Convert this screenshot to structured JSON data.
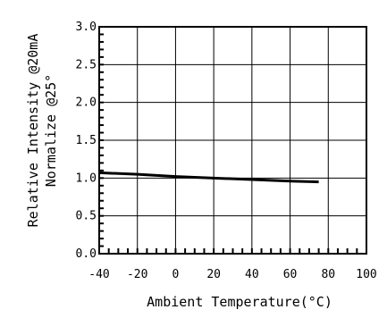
{
  "chart_data": {
    "type": "line",
    "title": "",
    "xlabel": "Ambient Temperature(°C)",
    "ylabel_line1": "Relative Intensity @20mA",
    "ylabel_line2": "Normalize @25°",
    "xlim": [
      -40,
      100
    ],
    "ylim": [
      0.0,
      3.0
    ],
    "x_ticks": [
      -40,
      -20,
      0,
      20,
      40,
      60,
      80,
      100
    ],
    "x_tick_labels": [
      "-40",
      "-20",
      "0",
      "20",
      "40",
      "60",
      "80",
      "100"
    ],
    "y_ticks": [
      0.0,
      0.5,
      1.0,
      1.5,
      2.0,
      2.5,
      3.0
    ],
    "y_tick_labels": [
      "0.0",
      "0.5",
      "1.0",
      "1.5",
      "2.0",
      "2.5",
      "3.0"
    ],
    "grid": true,
    "x": [
      -40,
      -20,
      0,
      20,
      40,
      60,
      75
    ],
    "series": [
      {
        "values": [
          1.07,
          1.05,
          1.02,
          1.0,
          0.98,
          0.96,
          0.95
        ]
      }
    ],
    "line_color": "#000000",
    "grid_color": "#000000",
    "background_color": "#ffffff"
  }
}
